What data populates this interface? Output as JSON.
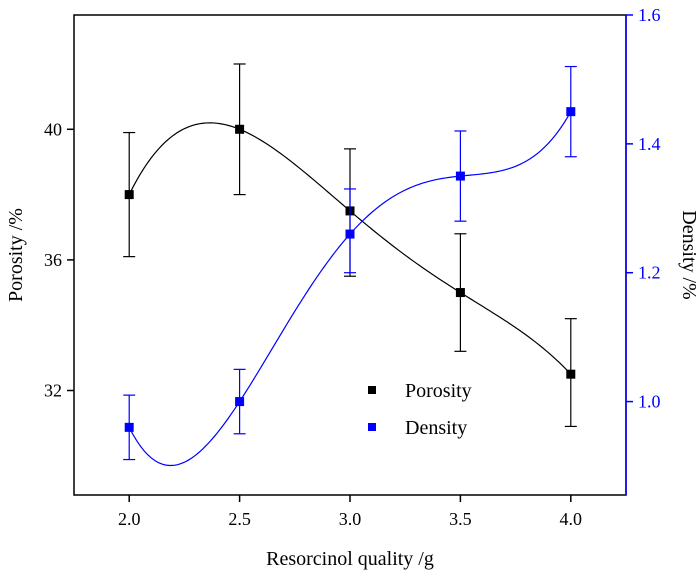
{
  "chart_data": {
    "type": "scatter",
    "xlabel": "Resorcinol quality /g",
    "x_ticks": [
      "2.0",
      "2.5",
      "3.0",
      "3.5",
      "4.0"
    ],
    "xlim": [
      1.75,
      4.25
    ],
    "grid": false,
    "legend_position": "bottom-center",
    "y_left": {
      "label": "Porosity /%",
      "ticks": [
        "32",
        "36",
        "40"
      ],
      "ylim": [
        28.8,
        43.5
      ],
      "color": "#000000"
    },
    "y_right": {
      "label": "Density /%",
      "ticks": [
        "1.0",
        "1.2",
        "1.4",
        "1.6"
      ],
      "ylim": [
        0.855,
        1.6
      ],
      "color": "#0000ff"
    },
    "series": [
      {
        "name": "Porosity",
        "axis": "left",
        "color": "#000000",
        "marker": "square",
        "fit_curve": true,
        "x": [
          2.0,
          2.5,
          3.0,
          3.5,
          4.0
        ],
        "y": [
          38.0,
          40.0,
          37.5,
          35.0,
          32.5
        ],
        "err_low": [
          36.1,
          38.0,
          35.5,
          33.2,
          30.9
        ],
        "err_high": [
          39.9,
          42.0,
          39.4,
          36.8,
          34.2
        ]
      },
      {
        "name": "Density",
        "axis": "right",
        "color": "#0000ff",
        "marker": "square",
        "fit_curve": true,
        "x": [
          2.0,
          2.5,
          3.0,
          3.5,
          4.0
        ],
        "y": [
          0.96,
          1.0,
          1.26,
          1.35,
          1.45
        ],
        "err_low": [
          0.91,
          0.95,
          1.2,
          1.28,
          1.38
        ],
        "err_high": [
          1.01,
          1.05,
          1.33,
          1.42,
          1.52
        ]
      }
    ]
  }
}
